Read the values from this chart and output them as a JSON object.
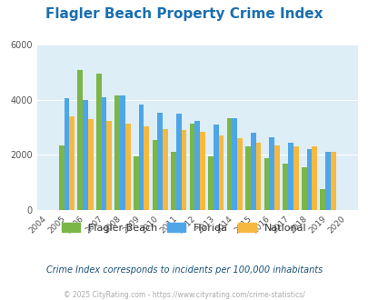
{
  "title": "Flagler Beach Property Crime Index",
  "title_color": "#1a6faf",
  "years": [
    2004,
    2005,
    2006,
    2007,
    2008,
    2009,
    2010,
    2011,
    2012,
    2013,
    2014,
    2015,
    2016,
    2017,
    2018,
    2019,
    2020
  ],
  "flagler_beach": [
    0,
    2350,
    5100,
    4950,
    4150,
    1950,
    2550,
    2100,
    3150,
    1950,
    3350,
    2300,
    1900,
    1700,
    1550,
    750,
    0
  ],
  "florida": [
    0,
    4050,
    4000,
    4100,
    4150,
    3850,
    3550,
    3500,
    3250,
    3100,
    3350,
    2800,
    2650,
    2450,
    2200,
    2100,
    0
  ],
  "national": [
    0,
    3400,
    3300,
    3250,
    3150,
    3050,
    2950,
    2900,
    2850,
    2700,
    2600,
    2450,
    2350,
    2300,
    2300,
    2100,
    0
  ],
  "bar_color_flagler": "#7ab648",
  "bar_color_florida": "#4da6e8",
  "bar_color_national": "#f5b942",
  "bg_color": "#ddeef6",
  "ylim": [
    0,
    6000
  ],
  "yticks": [
    0,
    2000,
    4000,
    6000
  ],
  "legend_labels": [
    "Flagler Beach",
    "Florida",
    "National"
  ],
  "footnote1": "Crime Index corresponds to incidents per 100,000 inhabitants",
  "footnote2": "© 2025 CityRating.com - https://www.cityrating.com/crime-statistics/",
  "footnote1_color": "#1a5276",
  "footnote2_color": "#aaaaaa"
}
